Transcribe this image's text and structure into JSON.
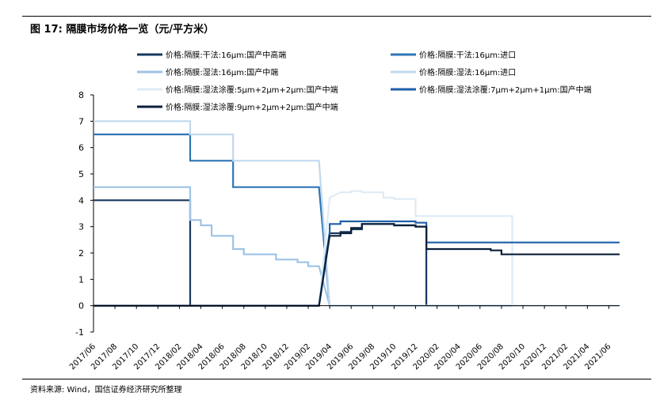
{
  "figure_title": "图 17:  隔膜市场价格一览（元/平方米）",
  "source_text": "资料来源: Wind，国信证券经济研究所整理",
  "chart_data": {
    "type": "line",
    "title": "",
    "xlabel": "",
    "ylabel": "",
    "ylim": [
      -1,
      8
    ],
    "yticks": [
      -1,
      0,
      1,
      2,
      3,
      4,
      5,
      6,
      7,
      8
    ],
    "x_start": "2017/06",
    "x_end": "2021/07",
    "xticks": [
      "2017/06",
      "2017/08",
      "2017/10",
      "2017/12",
      "2018/02",
      "2018/04",
      "2018/06",
      "2018/08",
      "2018/10",
      "2018/12",
      "2019/02",
      "2019/04",
      "2019/06",
      "2019/08",
      "2019/10",
      "2019/12",
      "2020/02",
      "2020/04",
      "2020/06",
      "2020/08",
      "2020/10",
      "2020/12",
      "2021/02",
      "2021/04",
      "2021/06"
    ],
    "grid": false,
    "legend_position": "top",
    "series": [
      {
        "name": "价格:隔膜:干法:16μm:国产中高端",
        "color": "#17375e",
        "width": 2.2,
        "points": [
          [
            "2017/06",
            4
          ],
          [
            "2018/03",
            4
          ],
          [
            "2018/03",
            0
          ],
          [
            "2019/03",
            0
          ],
          [
            "2019/04",
            2.75
          ],
          [
            "2019/05",
            2.75
          ],
          [
            "2019/05",
            2.8
          ],
          [
            "2019/06",
            2.8
          ],
          [
            "2019/06",
            2.9
          ],
          [
            "2019/07",
            2.9
          ],
          [
            "2019/07",
            3.1
          ],
          [
            "2019/10",
            3.1
          ],
          [
            "2019/10",
            3.05
          ],
          [
            "2019/12",
            3.05
          ],
          [
            "2019/12",
            3.0
          ],
          [
            "2020/01",
            3.0
          ],
          [
            "2020/01",
            0
          ],
          [
            "2021/07",
            0
          ]
        ]
      },
      {
        "name": "价格:隔膜:干法:16μm:进口",
        "color": "#2e75b6",
        "width": 2.2,
        "points": [
          [
            "2017/06",
            6.5
          ],
          [
            "2018/03",
            6.5
          ],
          [
            "2018/03",
            5.5
          ],
          [
            "2018/07",
            5.5
          ],
          [
            "2018/07",
            4.5
          ],
          [
            "2019/03",
            4.5
          ],
          [
            "2019/04",
            0
          ],
          [
            "2021/07",
            0
          ]
        ]
      },
      {
        "name": "价格:隔膜:湿法:16μm:国产中端",
        "color": "#9dc3e6",
        "width": 2.2,
        "points": [
          [
            "2017/06",
            4.5
          ],
          [
            "2018/03",
            4.5
          ],
          [
            "2018/03",
            3.25
          ],
          [
            "2018/04",
            3.25
          ],
          [
            "2018/04",
            3.05
          ],
          [
            "2018/05",
            3.05
          ],
          [
            "2018/05",
            2.65
          ],
          [
            "2018/07",
            2.65
          ],
          [
            "2018/07",
            2.15
          ],
          [
            "2018/08",
            2.15
          ],
          [
            "2018/08",
            1.95
          ],
          [
            "2018/11",
            1.95
          ],
          [
            "2018/11",
            1.75
          ],
          [
            "2019/01",
            1.75
          ],
          [
            "2019/01",
            1.65
          ],
          [
            "2019/02",
            1.65
          ],
          [
            "2019/02",
            1.5
          ],
          [
            "2019/03",
            1.5
          ],
          [
            "2019/04",
            0
          ],
          [
            "2021/07",
            0
          ]
        ]
      },
      {
        "name": "价格:隔膜:湿法:16μm:进口",
        "color": "#c0d9ee",
        "width": 2.2,
        "points": [
          [
            "2017/06",
            7
          ],
          [
            "2018/03",
            7
          ],
          [
            "2018/03",
            6.5
          ],
          [
            "2018/07",
            6.5
          ],
          [
            "2018/07",
            5.5
          ],
          [
            "2019/03",
            5.5
          ],
          [
            "2019/04",
            0
          ],
          [
            "2021/07",
            0
          ]
        ]
      },
      {
        "name": "价格:隔膜:湿法涂覆:5μm+2μm+2μm:国产中端",
        "color": "#deebf5",
        "width": 2.2,
        "points": [
          [
            "2017/06",
            0
          ],
          [
            "2019/03",
            0
          ],
          [
            "2019/04",
            4.1
          ],
          [
            "2019/05",
            4.3
          ],
          [
            "2019/06",
            4.3
          ],
          [
            "2019/06",
            4.35
          ],
          [
            "2019/07",
            4.35
          ],
          [
            "2019/07",
            4.3
          ],
          [
            "2019/09",
            4.3
          ],
          [
            "2019/09",
            4.1
          ],
          [
            "2019/10",
            4.1
          ],
          [
            "2019/10",
            4.05
          ],
          [
            "2019/12",
            4.05
          ],
          [
            "2019/12",
            3.4
          ],
          [
            "2020/09",
            3.4
          ],
          [
            "2020/09",
            0
          ],
          [
            "2021/07",
            0
          ]
        ]
      },
      {
        "name": "价格:隔膜:湿法涂覆:7μm+2μm+1μm:国产中端",
        "color": "#1f5fa8",
        "width": 2.2,
        "points": [
          [
            "2017/06",
            0
          ],
          [
            "2019/03",
            0
          ],
          [
            "2019/04",
            2.8
          ],
          [
            "2019/04",
            3.1
          ],
          [
            "2019/05",
            3.1
          ],
          [
            "2019/05",
            3.2
          ],
          [
            "2019/12",
            3.2
          ],
          [
            "2019/12",
            3.15
          ],
          [
            "2020/01",
            3.15
          ],
          [
            "2020/01",
            2.4
          ],
          [
            "2021/07",
            2.4
          ]
        ]
      },
      {
        "name": "价格:隔膜:湿法涂覆:9μm+2μm+2μm:国产中端",
        "color": "#0b1f3a",
        "width": 2.2,
        "points": [
          [
            "2017/06",
            0
          ],
          [
            "2019/03",
            0
          ],
          [
            "2019/04",
            2.65
          ],
          [
            "2019/05",
            2.65
          ],
          [
            "2019/05",
            2.75
          ],
          [
            "2019/06",
            2.75
          ],
          [
            "2019/06",
            2.95
          ],
          [
            "2019/07",
            2.95
          ],
          [
            "2019/07",
            3.1
          ],
          [
            "2019/10",
            3.1
          ],
          [
            "2019/10",
            3.05
          ],
          [
            "2019/12",
            3.05
          ],
          [
            "2019/12",
            3.0
          ],
          [
            "2020/01",
            3.0
          ],
          [
            "2020/01",
            2.15
          ],
          [
            "2020/07",
            2.15
          ],
          [
            "2020/07",
            2.1
          ],
          [
            "2020/08",
            2.1
          ],
          [
            "2020/08",
            1.95
          ],
          [
            "2021/07",
            1.95
          ]
        ]
      }
    ]
  }
}
